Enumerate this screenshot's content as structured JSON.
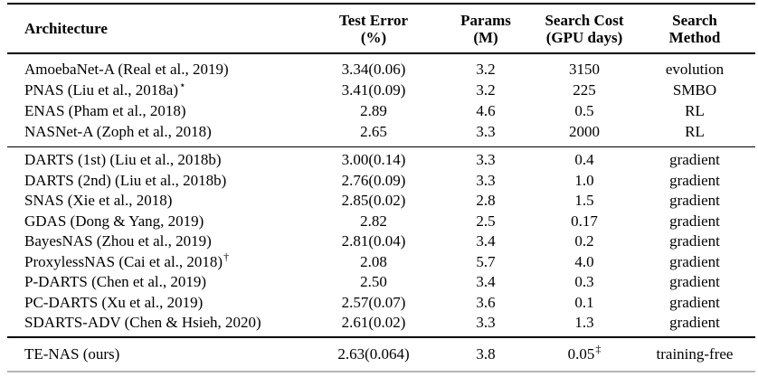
{
  "colors": {
    "rule": "#000000",
    "bottom_rule": "#b5b5b5",
    "text": "#000000",
    "background": "#ffffff"
  },
  "table": {
    "columns": [
      {
        "key": "architecture",
        "label": "Architecture",
        "sublabel": ""
      },
      {
        "key": "test-error",
        "label": "Test Error",
        "sublabel": "(%)"
      },
      {
        "key": "params",
        "label": "Params",
        "sublabel": "(M)"
      },
      {
        "key": "search-cost",
        "label": "Search Cost",
        "sublabel": "(GPU days)"
      },
      {
        "key": "search-method",
        "label": "Search",
        "sublabel": "Method"
      }
    ],
    "groups": [
      {
        "name": "non-gradient-methods",
        "rows": [
          {
            "architecture": "AmoebaNet-A (Real et al., 2019)",
            "architecture_sup": "",
            "test_error": "3.34(0.06)",
            "params": "3.2",
            "search_cost": "3150",
            "search_cost_sup": "",
            "search_method": "evolution"
          },
          {
            "architecture": "PNAS (Liu et al., 2018a)",
            "architecture_sup": "⋆",
            "test_error": "3.41(0.09)",
            "params": "3.2",
            "search_cost": "225",
            "search_cost_sup": "",
            "search_method": "SMBO"
          },
          {
            "architecture": "ENAS (Pham et al., 2018)",
            "architecture_sup": "",
            "test_error": "2.89",
            "params": "4.6",
            "search_cost": "0.5",
            "search_cost_sup": "",
            "search_method": "RL"
          },
          {
            "architecture": "NASNet-A (Zoph et al., 2018)",
            "architecture_sup": "",
            "test_error": "2.65",
            "params": "3.3",
            "search_cost": "2000",
            "search_cost_sup": "",
            "search_method": "RL"
          }
        ]
      },
      {
        "name": "gradient-methods",
        "rows": [
          {
            "architecture": "DARTS (1st) (Liu et al., 2018b)",
            "architecture_sup": "",
            "test_error": "3.00(0.14)",
            "params": "3.3",
            "search_cost": "0.4",
            "search_cost_sup": "",
            "search_method": "gradient"
          },
          {
            "architecture": "DARTS (2nd) (Liu et al., 2018b)",
            "architecture_sup": "",
            "test_error": "2.76(0.09)",
            "params": "3.3",
            "search_cost": "1.0",
            "search_cost_sup": "",
            "search_method": "gradient"
          },
          {
            "architecture": "SNAS (Xie et al., 2018)",
            "architecture_sup": "",
            "test_error": "2.85(0.02)",
            "params": "2.8",
            "search_cost": "1.5",
            "search_cost_sup": "",
            "search_method": "gradient"
          },
          {
            "architecture": "GDAS (Dong & Yang, 2019)",
            "architecture_sup": "",
            "test_error": "2.82",
            "params": "2.5",
            "search_cost": "0.17",
            "search_cost_sup": "",
            "search_method": "gradient"
          },
          {
            "architecture": "BayesNAS (Zhou et al., 2019)",
            "architecture_sup": "",
            "test_error": "2.81(0.04)",
            "params": "3.4",
            "search_cost": "0.2",
            "search_cost_sup": "",
            "search_method": "gradient"
          },
          {
            "architecture": "ProxylessNAS (Cai et al., 2018)",
            "architecture_sup": "†",
            "test_error": "2.08",
            "params": "5.7",
            "search_cost": "4.0",
            "search_cost_sup": "",
            "search_method": "gradient"
          },
          {
            "architecture": "P-DARTS (Chen et al., 2019)",
            "architecture_sup": "",
            "test_error": "2.50",
            "params": "3.4",
            "search_cost": "0.3",
            "search_cost_sup": "",
            "search_method": "gradient"
          },
          {
            "architecture": "PC-DARTS (Xu et al., 2019)",
            "architecture_sup": "",
            "test_error": "2.57(0.07)",
            "params": "3.6",
            "search_cost": "0.1",
            "search_cost_sup": "",
            "search_method": "gradient"
          },
          {
            "architecture": "SDARTS-ADV (Chen & Hsieh, 2020)",
            "architecture_sup": "",
            "test_error": "2.61(0.02)",
            "params": "3.3",
            "search_cost": "1.3",
            "search_cost_sup": "",
            "search_method": "gradient"
          }
        ]
      },
      {
        "name": "ours",
        "rows": [
          {
            "architecture": "TE-NAS (ours)",
            "architecture_sup": "",
            "test_error": "2.63(0.064)",
            "params": "3.8",
            "search_cost": "0.05",
            "search_cost_sup": "‡",
            "search_method": "training-free"
          }
        ]
      }
    ]
  }
}
